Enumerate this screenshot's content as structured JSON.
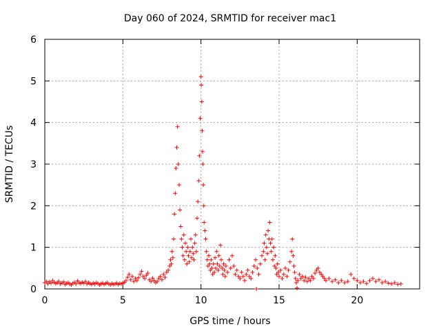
{
  "chart_data": {
    "type": "scatter",
    "title": "Day 060 of 2024, SRMTID for receiver mac1",
    "xlabel": "GPS time / hours",
    "ylabel": "SRMTID / TECUs",
    "xlim": [
      0,
      24
    ],
    "ylim": [
      0,
      6
    ],
    "x_ticks": [
      0,
      5,
      10,
      15,
      20
    ],
    "y_ticks": [
      0,
      1,
      2,
      3,
      4,
      5,
      6
    ],
    "grid": true,
    "marker": "+",
    "series": [
      {
        "name": "mac1",
        "color": "#ff0000",
        "points": [
          [
            0.0,
            0.15
          ],
          [
            0.1,
            0.18
          ],
          [
            0.2,
            0.12
          ],
          [
            0.3,
            0.17
          ],
          [
            0.4,
            0.14
          ],
          [
            0.5,
            0.2
          ],
          [
            0.6,
            0.16
          ],
          [
            0.7,
            0.13
          ],
          [
            0.8,
            0.15
          ],
          [
            0.9,
            0.18
          ],
          [
            1.0,
            0.12
          ],
          [
            1.1,
            0.14
          ],
          [
            1.2,
            0.17
          ],
          [
            1.3,
            0.11
          ],
          [
            1.4,
            0.13
          ],
          [
            1.5,
            0.15
          ],
          [
            1.6,
            0.12
          ],
          [
            1.7,
            0.1
          ],
          [
            1.8,
            0.13
          ],
          [
            1.9,
            0.16
          ],
          [
            2.0,
            0.12
          ],
          [
            2.1,
            0.19
          ],
          [
            2.2,
            0.15
          ],
          [
            2.3,
            0.13
          ],
          [
            2.4,
            0.16
          ],
          [
            2.5,
            0.14
          ],
          [
            2.6,
            0.18
          ],
          [
            2.7,
            0.12
          ],
          [
            2.8,
            0.15
          ],
          [
            2.9,
            0.13
          ],
          [
            3.0,
            0.11
          ],
          [
            3.1,
            0.14
          ],
          [
            3.2,
            0.12
          ],
          [
            3.3,
            0.15
          ],
          [
            3.4,
            0.13
          ],
          [
            3.5,
            0.1
          ],
          [
            3.6,
            0.12
          ],
          [
            3.7,
            0.14
          ],
          [
            3.8,
            0.11
          ],
          [
            3.9,
            0.13
          ],
          [
            4.0,
            0.15
          ],
          [
            4.1,
            0.12
          ],
          [
            4.2,
            0.1
          ],
          [
            4.3,
            0.13
          ],
          [
            4.4,
            0.11
          ],
          [
            4.5,
            0.12
          ],
          [
            4.6,
            0.14
          ],
          [
            4.7,
            0.11
          ],
          [
            4.8,
            0.13
          ],
          [
            4.9,
            0.12
          ],
          [
            5.0,
            0.14
          ],
          [
            5.1,
            0.16
          ],
          [
            5.2,
            0.2
          ],
          [
            5.3,
            0.28
          ],
          [
            5.4,
            0.35
          ],
          [
            5.5,
            0.22
          ],
          [
            5.6,
            0.3
          ],
          [
            5.7,
            0.18
          ],
          [
            5.8,
            0.25
          ],
          [
            5.9,
            0.2
          ],
          [
            6.0,
            0.27
          ],
          [
            6.1,
            0.35
          ],
          [
            6.2,
            0.42
          ],
          [
            6.3,
            0.3
          ],
          [
            6.4,
            0.25
          ],
          [
            6.5,
            0.33
          ],
          [
            6.6,
            0.38
          ],
          [
            6.7,
            0.22
          ],
          [
            6.8,
            0.18
          ],
          [
            6.9,
            0.26
          ],
          [
            7.0,
            0.2
          ],
          [
            7.1,
            0.15
          ],
          [
            7.2,
            0.18
          ],
          [
            7.3,
            0.25
          ],
          [
            7.4,
            0.3
          ],
          [
            7.5,
            0.22
          ],
          [
            7.6,
            0.35
          ],
          [
            7.7,
            0.28
          ],
          [
            7.8,
            0.4
          ],
          [
            7.9,
            0.45
          ],
          [
            8.0,
            0.55
          ],
          [
            8.05,
            0.7
          ],
          [
            8.1,
            0.6
          ],
          [
            8.15,
            0.9
          ],
          [
            8.2,
            0.75
          ],
          [
            8.25,
            1.2
          ],
          [
            8.3,
            1.8
          ],
          [
            8.35,
            2.3
          ],
          [
            8.4,
            2.9
          ],
          [
            8.45,
            3.4
          ],
          [
            8.5,
            3.9
          ],
          [
            8.55,
            3.0
          ],
          [
            8.6,
            2.5
          ],
          [
            8.65,
            1.9
          ],
          [
            8.7,
            1.5
          ],
          [
            8.75,
            1.2
          ],
          [
            8.8,
            1.0
          ],
          [
            8.85,
            0.8
          ],
          [
            8.9,
            1.3
          ],
          [
            8.95,
            0.7
          ],
          [
            9.0,
            1.1
          ],
          [
            9.05,
            0.9
          ],
          [
            9.1,
            0.6
          ],
          [
            9.15,
            1.0
          ],
          [
            9.2,
            0.8
          ],
          [
            9.25,
            0.65
          ],
          [
            9.3,
            0.9
          ],
          [
            9.35,
            1.2
          ],
          [
            9.4,
            0.75
          ],
          [
            9.45,
            1.0
          ],
          [
            9.5,
            0.85
          ],
          [
            9.55,
            0.7
          ],
          [
            9.6,
            1.1
          ],
          [
            9.65,
            1.3
          ],
          [
            9.7,
            0.9
          ],
          [
            9.75,
            1.7
          ],
          [
            9.8,
            2.1
          ],
          [
            9.85,
            2.6
          ],
          [
            9.9,
            3.2
          ],
          [
            9.95,
            4.1
          ],
          [
            10.0,
            5.1
          ],
          [
            10.02,
            4.9
          ],
          [
            10.05,
            4.5
          ],
          [
            10.08,
            3.8
          ],
          [
            10.1,
            3.3
          ],
          [
            10.13,
            3.0
          ],
          [
            10.15,
            2.5
          ],
          [
            10.18,
            2.0
          ],
          [
            10.2,
            1.6
          ],
          [
            10.25,
            1.4
          ],
          [
            10.3,
            1.2
          ],
          [
            10.35,
            0.9
          ],
          [
            10.4,
            0.7
          ],
          [
            10.45,
            0.55
          ],
          [
            10.5,
            0.8
          ],
          [
            10.55,
            0.6
          ],
          [
            10.6,
            0.45
          ],
          [
            10.65,
            0.7
          ],
          [
            10.7,
            0.5
          ],
          [
            10.75,
            0.35
          ],
          [
            10.8,
            0.6
          ],
          [
            10.85,
            0.4
          ],
          [
            10.9,
            0.75
          ],
          [
            10.95,
            0.5
          ],
          [
            11.0,
            0.9
          ],
          [
            11.05,
            0.6
          ],
          [
            11.1,
            0.45
          ],
          [
            11.15,
            0.8
          ],
          [
            11.2,
            0.55
          ],
          [
            11.25,
            1.05
          ],
          [
            11.3,
            0.7
          ],
          [
            11.35,
            0.5
          ],
          [
            11.4,
            0.35
          ],
          [
            11.45,
            0.6
          ],
          [
            11.5,
            0.45
          ],
          [
            11.55,
            0.3
          ],
          [
            11.6,
            0.55
          ],
          [
            11.7,
            0.4
          ],
          [
            11.8,
            0.7
          ],
          [
            11.9,
            0.5
          ],
          [
            12.0,
            0.8
          ],
          [
            12.1,
            0.55
          ],
          [
            12.2,
            0.35
          ],
          [
            12.3,
            0.45
          ],
          [
            12.4,
            0.3
          ],
          [
            12.5,
            0.25
          ],
          [
            12.6,
            0.4
          ],
          [
            12.7,
            0.3
          ],
          [
            12.8,
            0.2
          ],
          [
            12.9,
            0.35
          ],
          [
            13.0,
            0.45
          ],
          [
            13.1,
            0.3
          ],
          [
            13.2,
            0.25
          ],
          [
            13.3,
            0.4
          ],
          [
            13.4,
            0.55
          ],
          [
            13.5,
            0.7
          ],
          [
            13.55,
            0.0
          ],
          [
            13.6,
            0.5
          ],
          [
            13.7,
            0.35
          ],
          [
            13.8,
            0.6
          ],
          [
            13.9,
            0.8
          ],
          [
            14.0,
            0.9
          ],
          [
            14.05,
            1.1
          ],
          [
            14.1,
            0.7
          ],
          [
            14.15,
            1.3
          ],
          [
            14.2,
            1.0
          ],
          [
            14.25,
            0.85
          ],
          [
            14.3,
            1.4
          ],
          [
            14.35,
            1.2
          ],
          [
            14.4,
            1.6
          ],
          [
            14.45,
            1.1
          ],
          [
            14.5,
            0.9
          ],
          [
            14.55,
            1.2
          ],
          [
            14.6,
            0.7
          ],
          [
            14.65,
            1.0
          ],
          [
            14.7,
            0.55
          ],
          [
            14.75,
            0.8
          ],
          [
            14.8,
            0.5
          ],
          [
            14.85,
            0.35
          ],
          [
            14.9,
            0.6
          ],
          [
            14.95,
            0.4
          ],
          [
            15.0,
            0.3
          ],
          [
            15.1,
            0.45
          ],
          [
            15.2,
            0.25
          ],
          [
            15.3,
            0.35
          ],
          [
            15.4,
            0.5
          ],
          [
            15.5,
            0.3
          ],
          [
            15.6,
            0.45
          ],
          [
            15.7,
            0.65
          ],
          [
            15.8,
            0.9
          ],
          [
            15.85,
            1.2
          ],
          [
            15.9,
            0.8
          ],
          [
            15.95,
            0.55
          ],
          [
            16.0,
            0.4
          ],
          [
            16.05,
            0.25
          ],
          [
            16.1,
            0.15
          ],
          [
            16.15,
            0.02
          ],
          [
            16.2,
            0.2
          ],
          [
            16.3,
            0.35
          ],
          [
            16.4,
            0.25
          ],
          [
            16.5,
            0.3
          ],
          [
            16.6,
            0.2
          ],
          [
            16.7,
            0.28
          ],
          [
            16.8,
            0.18
          ],
          [
            16.9,
            0.25
          ],
          [
            17.0,
            0.2
          ],
          [
            17.1,
            0.3
          ],
          [
            17.2,
            0.25
          ],
          [
            17.3,
            0.38
          ],
          [
            17.4,
            0.45
          ],
          [
            17.5,
            0.5
          ],
          [
            17.6,
            0.4
          ],
          [
            17.7,
            0.35
          ],
          [
            17.8,
            0.3
          ],
          [
            17.9,
            0.25
          ],
          [
            18.0,
            0.2
          ],
          [
            18.2,
            0.25
          ],
          [
            18.4,
            0.18
          ],
          [
            18.6,
            0.22
          ],
          [
            18.8,
            0.15
          ],
          [
            19.0,
            0.2
          ],
          [
            19.2,
            0.15
          ],
          [
            19.4,
            0.18
          ],
          [
            19.6,
            0.35
          ],
          [
            19.8,
            0.25
          ],
          [
            20.0,
            0.2
          ],
          [
            20.2,
            0.15
          ],
          [
            20.4,
            0.18
          ],
          [
            20.6,
            0.13
          ],
          [
            20.8,
            0.2
          ],
          [
            21.0,
            0.25
          ],
          [
            21.2,
            0.18
          ],
          [
            21.4,
            0.22
          ],
          [
            21.6,
            0.15
          ],
          [
            21.8,
            0.18
          ],
          [
            22.0,
            0.14
          ],
          [
            22.2,
            0.12
          ],
          [
            22.4,
            0.15
          ],
          [
            22.6,
            0.11
          ],
          [
            22.8,
            0.12
          ]
        ]
      }
    ]
  }
}
